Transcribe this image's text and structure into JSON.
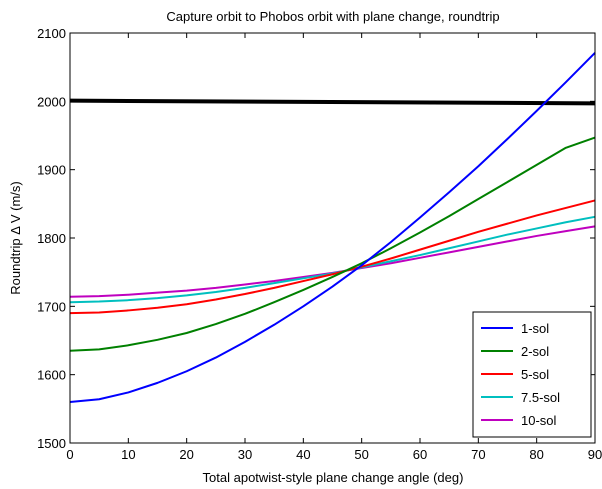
{
  "chart_data": {
    "type": "line",
    "title": "Capture orbit to Phobos orbit with plane change, roundtrip",
    "xlabel": "Total apotwist-style plane change angle (deg)",
    "ylabel": "Roundtrip Δ V (m/s)",
    "xlim": [
      0,
      90
    ],
    "ylim": [
      1500,
      2100
    ],
    "xticks": [
      0,
      10,
      20,
      30,
      40,
      50,
      60,
      70,
      80,
      90
    ],
    "yticks": [
      1500,
      1600,
      1700,
      1800,
      1900,
      2000,
      2100
    ],
    "grid": false,
    "legend_position": "bottom-right",
    "series": [
      {
        "name": "1-sol",
        "color": "#0000ff",
        "x": [
          0,
          5,
          10,
          15,
          20,
          25,
          30,
          35,
          40,
          45,
          50,
          55,
          60,
          65,
          70,
          75,
          80,
          85,
          90
        ],
        "y": [
          1560,
          1564,
          1574,
          1588,
          1605,
          1625,
          1648,
          1673,
          1700,
          1729,
          1760,
          1794,
          1830,
          1867,
          1905,
          1945,
          1986,
          2028,
          2071
        ]
      },
      {
        "name": "2-sol",
        "color": "#008000",
        "x": [
          0,
          5,
          10,
          15,
          20,
          25,
          30,
          35,
          40,
          45,
          50,
          55,
          60,
          65,
          70,
          75,
          80,
          85,
          90
        ],
        "y": [
          1635,
          1637,
          1643,
          1651,
          1661,
          1674,
          1689,
          1706,
          1724,
          1743,
          1763,
          1785,
          1808,
          1832,
          1857,
          1882,
          1907,
          1932,
          1947
        ]
      },
      {
        "name": "5-sol",
        "color": "#ff0000",
        "x": [
          0,
          5,
          10,
          15,
          20,
          25,
          30,
          35,
          40,
          45,
          50,
          55,
          60,
          65,
          70,
          75,
          80,
          85,
          90
        ],
        "y": [
          1690,
          1691,
          1694,
          1698,
          1703,
          1710,
          1718,
          1727,
          1737,
          1747,
          1758,
          1770,
          1783,
          1796,
          1809,
          1821,
          1833,
          1844,
          1855
        ]
      },
      {
        "name": "7.5-sol",
        "color": "#00bfbf",
        "x": [
          0,
          5,
          10,
          15,
          20,
          25,
          30,
          35,
          40,
          45,
          50,
          55,
          60,
          65,
          70,
          75,
          80,
          85,
          90
        ],
        "y": [
          1706,
          1707,
          1709,
          1712,
          1716,
          1721,
          1727,
          1734,
          1741,
          1748,
          1757,
          1766,
          1775,
          1785,
          1795,
          1805,
          1814,
          1823,
          1831
        ]
      },
      {
        "name": "10-sol",
        "color": "#bf00bf",
        "x": [
          0,
          5,
          10,
          15,
          20,
          25,
          30,
          35,
          40,
          45,
          50,
          55,
          60,
          65,
          70,
          75,
          80,
          85,
          90
        ],
        "y": [
          1714,
          1715,
          1717,
          1720,
          1723,
          1727,
          1732,
          1737,
          1743,
          1749,
          1756,
          1763,
          1771,
          1779,
          1787,
          1795,
          1803,
          1810,
          1817
        ]
      }
    ],
    "reference_line": {
      "color": "#000000",
      "x": [
        0,
        90
      ],
      "y": [
        2001,
        1997
      ]
    }
  }
}
